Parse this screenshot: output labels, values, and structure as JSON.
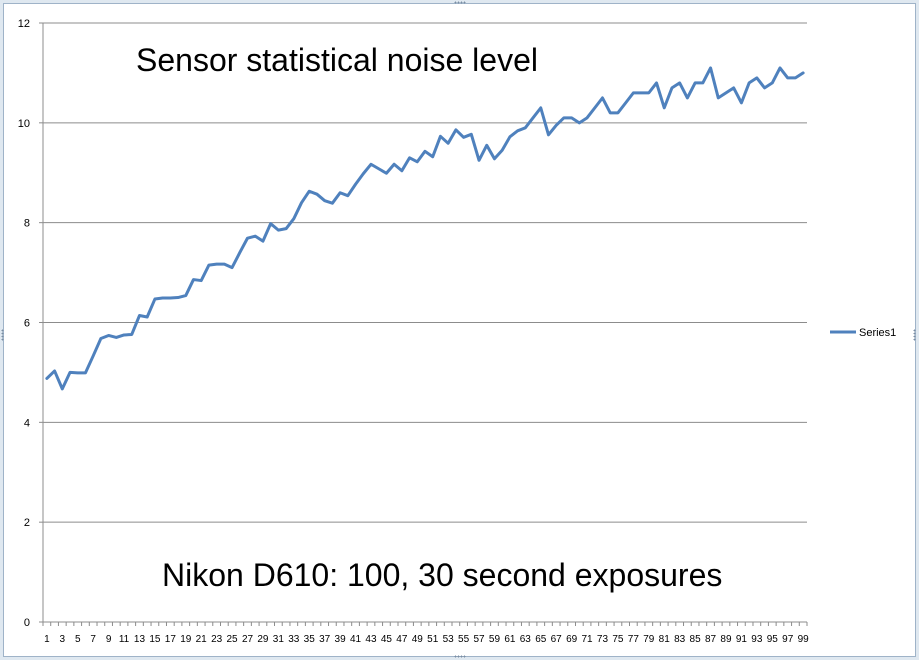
{
  "chart_data": {
    "type": "line",
    "title": "",
    "xlabel": "",
    "ylabel": "",
    "ylim": [
      0,
      12
    ],
    "yticks": [
      0,
      2,
      4,
      6,
      8,
      10,
      12
    ],
    "grid": true,
    "legend_position": "right",
    "annotations": [
      "Sensor statistical noise level",
      "Nikon D610:  100, 30 second exposures"
    ],
    "x": [
      1,
      2,
      3,
      4,
      5,
      6,
      7,
      8,
      9,
      10,
      11,
      12,
      13,
      14,
      15,
      16,
      17,
      18,
      19,
      20,
      21,
      22,
      23,
      24,
      25,
      26,
      27,
      28,
      29,
      30,
      31,
      32,
      33,
      34,
      35,
      36,
      37,
      38,
      39,
      40,
      41,
      42,
      43,
      44,
      45,
      46,
      47,
      48,
      49,
      50,
      51,
      52,
      53,
      54,
      55,
      56,
      57,
      58,
      59,
      60,
      61,
      62,
      63,
      64,
      65,
      66,
      67,
      68,
      69,
      70,
      71,
      72,
      73,
      74,
      75,
      76,
      77,
      78,
      79,
      80,
      81,
      82,
      83,
      84,
      85,
      86,
      87,
      88,
      89,
      90,
      91,
      92,
      93,
      94,
      95,
      96,
      97,
      98,
      99
    ],
    "x_tick_labels": [
      "1",
      "3",
      "5",
      "7",
      "9",
      "11",
      "13",
      "15",
      "17",
      "19",
      "21",
      "23",
      "25",
      "27",
      "29",
      "31",
      "33",
      "35",
      "37",
      "39",
      "41",
      "43",
      "45",
      "47",
      "49",
      "51",
      "53",
      "55",
      "57",
      "59",
      "61",
      "63",
      "65",
      "67",
      "69",
      "71",
      "73",
      "75",
      "77",
      "79",
      "81",
      "83",
      "85",
      "87",
      "89",
      "91",
      "93",
      "95",
      "97",
      "99"
    ],
    "series": [
      {
        "name": "Series1",
        "color": "#4f81bd",
        "values": [
          4.88,
          5.03,
          4.67,
          5.0,
          4.99,
          4.99,
          5.33,
          5.68,
          5.74,
          5.7,
          5.75,
          5.76,
          6.14,
          6.11,
          6.47,
          6.49,
          6.49,
          6.5,
          6.54,
          6.86,
          6.84,
          7.15,
          7.17,
          7.17,
          7.1,
          7.4,
          7.69,
          7.73,
          7.63,
          7.98,
          7.85,
          7.88,
          8.08,
          8.4,
          8.63,
          8.57,
          8.44,
          8.39,
          8.6,
          8.54,
          8.77,
          8.98,
          9.17,
          9.08,
          8.99,
          9.17,
          9.04,
          9.3,
          9.22,
          9.43,
          9.32,
          9.73,
          9.59,
          9.86,
          9.71,
          9.77,
          9.25,
          9.55,
          9.28,
          9.45,
          9.72,
          9.84,
          9.9,
          10.1,
          10.3,
          9.76,
          9.95,
          10.1,
          10.1,
          10.0,
          10.1,
          10.3,
          10.5,
          10.2,
          10.2,
          10.4,
          10.6,
          10.6,
          10.6,
          10.8,
          10.3,
          10.7,
          10.8,
          10.5,
          10.8,
          10.8,
          11.1,
          10.5,
          10.6,
          10.7,
          10.4,
          10.8,
          10.9,
          10.7,
          10.8,
          11.1,
          10.9,
          10.9,
          11.0
        ]
      }
    ]
  }
}
